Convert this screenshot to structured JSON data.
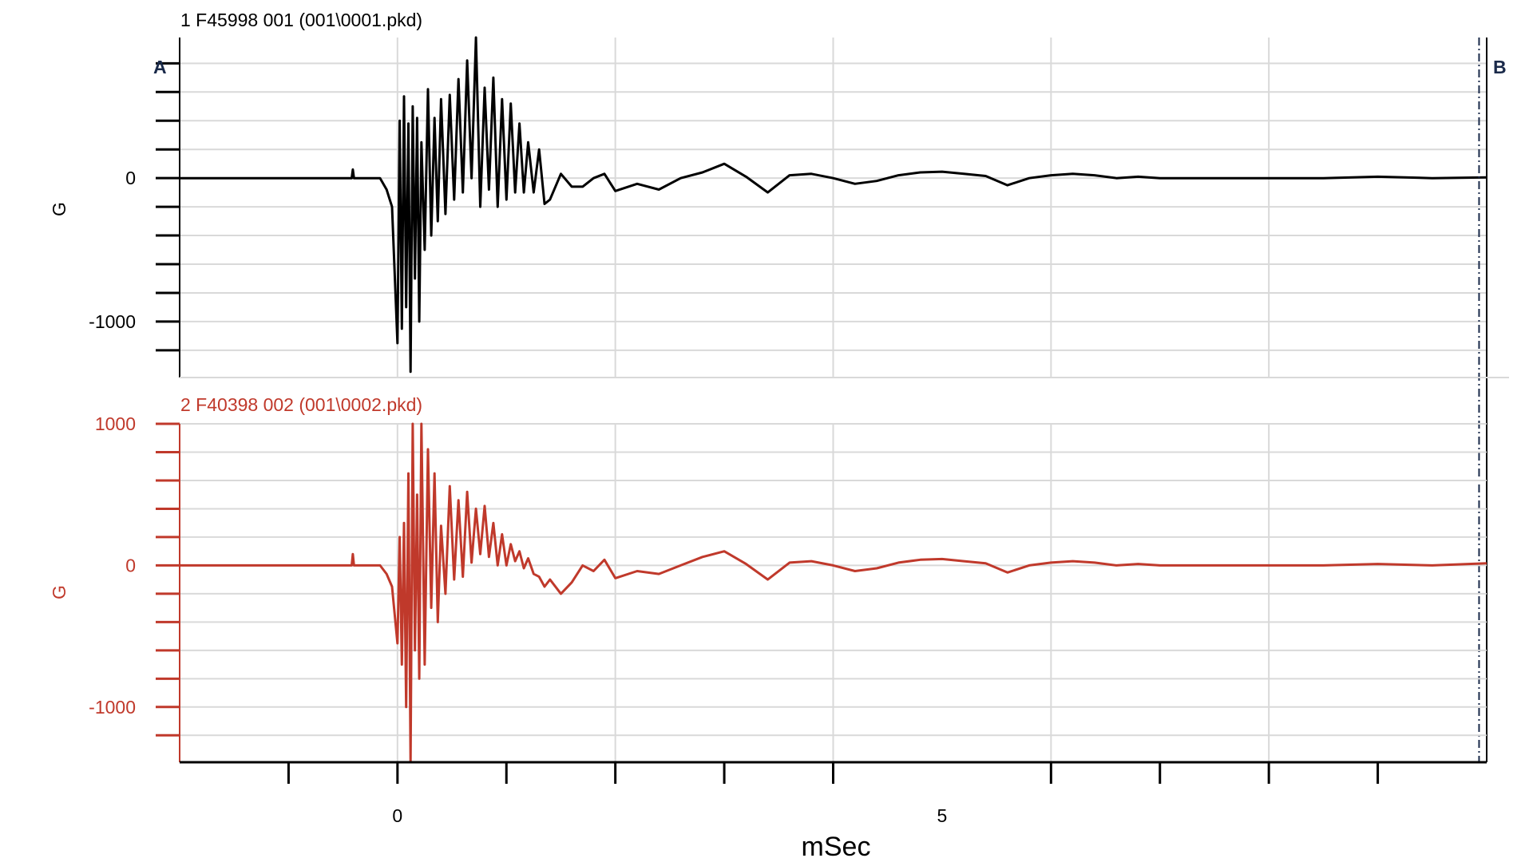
{
  "chart_data": {
    "type": "line",
    "xlabel": "mSec",
    "xlim": [
      -2,
      10
    ],
    "x_tick_labels": [
      {
        "value": 0,
        "label": "0"
      },
      {
        "value": 5,
        "label": "5"
      }
    ],
    "x_gridlines": [
      0,
      2,
      4,
      6,
      8
    ],
    "x_minor_ticks": [
      -1,
      1,
      3,
      7,
      9
    ],
    "cursor_a": {
      "label": "A",
      "x": -2
    },
    "cursor_b": {
      "label": "B",
      "x": 9.93
    },
    "panels": [
      {
        "title": "1 F45998 001 (001\\0001.pkd)",
        "ylabel": "G",
        "color": "#000000",
        "ylim": [
          -1390,
          980
        ],
        "y_tick_labels": [
          {
            "value": 0,
            "label": "0"
          },
          {
            "value": -1000,
            "label": "-1000"
          }
        ],
        "y_gridlines": [
          800,
          600,
          400,
          200,
          0,
          -200,
          -400,
          -600,
          -800,
          -1000,
          -1200
        ],
        "y_ticks": [
          800,
          600,
          400,
          200,
          0,
          -200,
          -400,
          -600,
          -800,
          -1000,
          -1200
        ],
        "series": [
          {
            "x": [
              -2.0,
              -0.42,
              -0.41,
              -0.4,
              -0.16,
              -0.1,
              -0.05,
              0.0,
              0.02,
              0.04,
              0.06,
              0.08,
              0.1,
              0.12,
              0.14,
              0.16,
              0.18,
              0.2,
              0.22,
              0.25,
              0.28,
              0.31,
              0.34,
              0.37,
              0.4,
              0.44,
              0.48,
              0.52,
              0.56,
              0.6,
              0.64,
              0.68,
              0.72,
              0.76,
              0.8,
              0.84,
              0.88,
              0.92,
              0.96,
              1.0,
              1.04,
              1.08,
              1.12,
              1.16,
              1.2,
              1.25,
              1.3,
              1.35,
              1.4,
              1.5,
              1.6,
              1.7,
              1.8,
              1.9,
              2.0,
              2.2,
              2.4,
              2.6,
              2.8,
              3.0,
              3.2,
              3.4,
              3.6,
              3.8,
              4.0,
              4.2,
              4.4,
              4.6,
              4.8,
              5.0,
              5.2,
              5.4,
              5.6,
              5.8,
              6.0,
              6.2,
              6.4,
              6.6,
              6.8,
              7.0,
              7.5,
              8.0,
              8.5,
              9.0,
              9.5,
              10.0
            ],
            "y": [
              0,
              0,
              60,
              0,
              0,
              -80,
              -200,
              -1150,
              400,
              -1050,
              570,
              -900,
              380,
              -1350,
              500,
              -700,
              420,
              -1000,
              250,
              -500,
              620,
              -400,
              420,
              -300,
              550,
              -250,
              580,
              -150,
              690,
              -100,
              820,
              0,
              980,
              -200,
              630,
              -80,
              700,
              -200,
              550,
              -150,
              520,
              -100,
              380,
              -100,
              250,
              -100,
              200,
              -180,
              -150,
              30,
              -60,
              -60,
              0,
              30,
              -90,
              -40,
              -80,
              0,
              40,
              100,
              10,
              -100,
              20,
              30,
              0,
              -40,
              -20,
              20,
              40,
              45,
              30,
              15,
              -50,
              0,
              20,
              30,
              20,
              0,
              10,
              0,
              0,
              0,
              0,
              10,
              0,
              5
            ]
          }
        ]
      },
      {
        "title": "2 F40398 002 (001\\0002.pkd)",
        "ylabel": "G",
        "color": "#c0392b",
        "ylim": [
          -1390,
          1000
        ],
        "y_tick_labels": [
          {
            "value": 1000,
            "label": "1000"
          },
          {
            "value": 0,
            "label": "0"
          },
          {
            "value": -1000,
            "label": "-1000"
          }
        ],
        "y_gridlines": [
          1000,
          800,
          600,
          400,
          200,
          0,
          -200,
          -400,
          -600,
          -800,
          -1000,
          -1200
        ],
        "y_ticks": [
          1000,
          800,
          600,
          400,
          200,
          0,
          -200,
          -400,
          -600,
          -800,
          -1000,
          -1200
        ],
        "series": [
          {
            "x": [
              -2.0,
              -0.42,
              -0.41,
              -0.4,
              -0.16,
              -0.1,
              -0.05,
              0.0,
              0.02,
              0.04,
              0.06,
              0.08,
              0.1,
              0.12,
              0.14,
              0.16,
              0.18,
              0.2,
              0.22,
              0.25,
              0.28,
              0.31,
              0.34,
              0.37,
              0.4,
              0.44,
              0.48,
              0.52,
              0.56,
              0.6,
              0.64,
              0.68,
              0.72,
              0.76,
              0.8,
              0.84,
              0.88,
              0.92,
              0.96,
              1.0,
              1.04,
              1.08,
              1.12,
              1.16,
              1.2,
              1.25,
              1.3,
              1.35,
              1.4,
              1.5,
              1.6,
              1.7,
              1.8,
              1.9,
              2.0,
              2.2,
              2.4,
              2.6,
              2.8,
              3.0,
              3.2,
              3.4,
              3.6,
              3.8,
              4.0,
              4.2,
              4.4,
              4.6,
              4.8,
              5.0,
              5.2,
              5.4,
              5.6,
              5.8,
              6.0,
              6.2,
              6.4,
              6.6,
              6.8,
              7.0,
              7.5,
              8.0,
              8.5,
              9.0,
              9.5,
              10.0
            ],
            "y": [
              0,
              0,
              80,
              0,
              0,
              -60,
              -150,
              -550,
              200,
              -700,
              300,
              -1000,
              650,
              -1390,
              1000,
              -600,
              500,
              -800,
              1000,
              -700,
              820,
              -300,
              650,
              -400,
              280,
              -200,
              560,
              -100,
              460,
              -80,
              520,
              20,
              400,
              80,
              420,
              60,
              300,
              0,
              220,
              0,
              150,
              30,
              100,
              -20,
              50,
              -60,
              -80,
              -150,
              -100,
              -200,
              -120,
              0,
              -40,
              40,
              -90,
              -40,
              -60,
              0,
              60,
              100,
              10,
              -100,
              20,
              30,
              0,
              -40,
              -20,
              20,
              40,
              45,
              30,
              15,
              -50,
              0,
              20,
              30,
              20,
              0,
              10,
              0,
              0,
              0,
              0,
              10,
              0,
              15
            ]
          }
        ]
      }
    ]
  }
}
